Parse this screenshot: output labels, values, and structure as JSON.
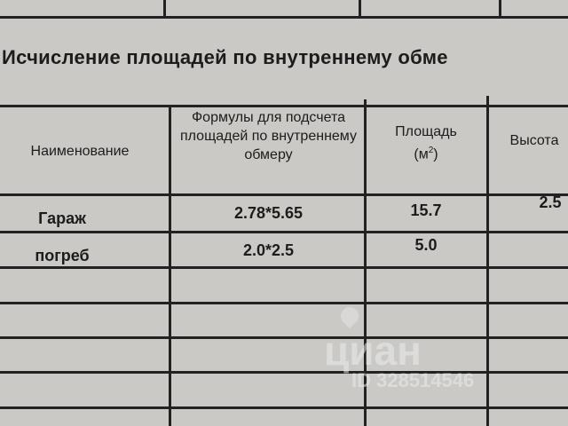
{
  "title": "Исчисление площадей по внутреннему обме",
  "table": {
    "headers": [
      "Наименование",
      "Формулы для подсчета площадей по внутреннему обмеру",
      "Площадь (м²)",
      "Высота"
    ],
    "header_area_main": "Площадь",
    "header_area_unit": "(м",
    "header_area_sup": "2",
    "header_area_close": ")",
    "rows": [
      {
        "name": "Гараж",
        "formula": "2.78*5.65",
        "area": "15.7",
        "height": "2.5"
      },
      {
        "name": "погреб",
        "formula": "2.0*2.5",
        "area": "5.0",
        "height": ""
      }
    ]
  },
  "watermark": {
    "brand": "циан",
    "id": "ID 328514546"
  }
}
